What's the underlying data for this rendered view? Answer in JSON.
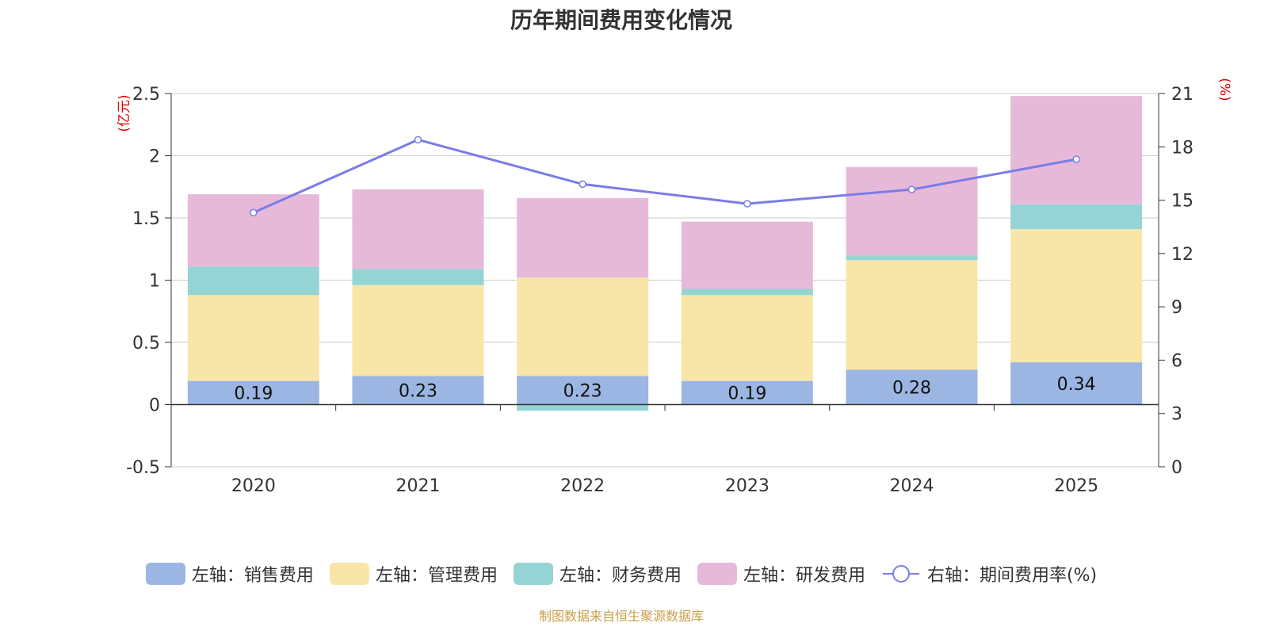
{
  "chart_data": {
    "type": "bar",
    "title": "历年期间费用变化情况",
    "categories": [
      "2020",
      "2021",
      "2022",
      "2023",
      "2024",
      "2025"
    ],
    "stacked": true,
    "series": [
      {
        "name": "左轴：销售费用",
        "axis": "left",
        "color": "#9bb6e2",
        "values": [
          0.19,
          0.23,
          0.23,
          0.19,
          0.28,
          0.34
        ],
        "labels": [
          "0.19",
          "0.23",
          "0.23",
          "0.19",
          "0.28",
          "0.34"
        ]
      },
      {
        "name": "左轴：管理费用",
        "axis": "left",
        "color": "#f8e6a8",
        "values": [
          0.69,
          0.73,
          0.79,
          0.69,
          0.88,
          1.07
        ]
      },
      {
        "name": "左轴：财务费用",
        "axis": "left",
        "color": "#95d4d4",
        "values": [
          0.23,
          0.13,
          -0.05,
          0.05,
          0.04,
          0.2
        ]
      },
      {
        "name": "左轴：研发费用",
        "axis": "left",
        "color": "#e7b9d9",
        "values": [
          0.58,
          0.64,
          0.64,
          0.54,
          0.71,
          0.87
        ]
      }
    ],
    "line_series": {
      "name": "右轴：期间费用率(%)",
      "axis": "right",
      "color": "#7a7ce8",
      "values": [
        14.3,
        18.4,
        15.9,
        14.8,
        15.6,
        17.3
      ]
    },
    "left_axis": {
      "unit": "(亿元)",
      "min": -0.5,
      "max": 2.5,
      "ticks": [
        -0.5,
        0,
        0.5,
        1,
        1.5,
        2,
        2.5
      ],
      "tick_labels": [
        "-0.5",
        "0",
        "0.5",
        "1",
        "1.5",
        "2",
        "2.5"
      ]
    },
    "right_axis": {
      "unit": "(%)",
      "min": 0,
      "max": 21,
      "ticks": [
        0,
        3,
        6,
        9,
        12,
        15,
        18,
        21
      ],
      "tick_labels": [
        "0",
        "3",
        "6",
        "9",
        "12",
        "15",
        "18",
        "21"
      ]
    },
    "grid": true,
    "legend_position": "bottom"
  },
  "source_note": "制图数据来自恒生聚源数据库"
}
